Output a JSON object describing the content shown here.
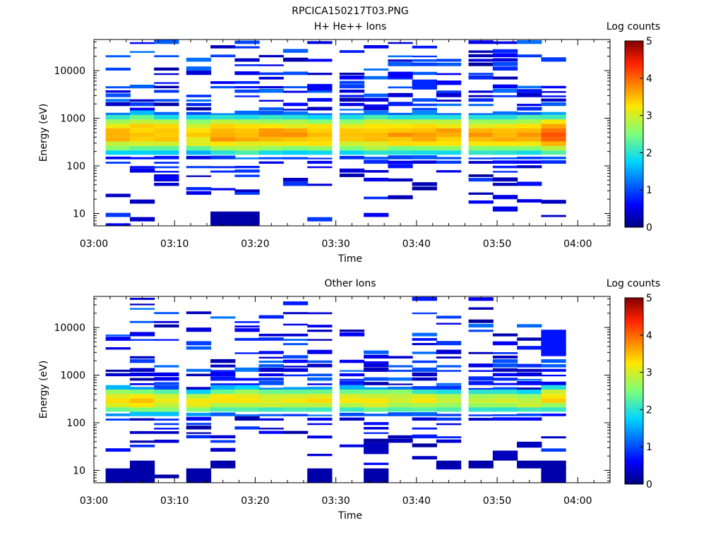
{
  "figure": {
    "title": "RPCICA150217T03.PNG"
  },
  "chart_data": [
    {
      "type": "heatmap",
      "title": "H+ He++ Ions",
      "xlabel": "Time",
      "ylabel": "Energy (eV)",
      "x_ticks": [
        "03:00",
        "03:10",
        "03:20",
        "03:30",
        "03:40",
        "03:50",
        "04:00"
      ],
      "x_range": [
        "03:00",
        "04:04"
      ],
      "y_scale": "log",
      "y_ticks": [
        10,
        100,
        1000,
        10000
      ],
      "y_range": [
        5.5,
        45000
      ],
      "colorbar": {
        "label": "Log counts",
        "ticks": [
          0,
          1,
          2,
          3,
          4,
          5
        ],
        "range": [
          0,
          5
        ]
      },
      "time_bins": [
        "03:03",
        "03:06",
        "03:09",
        "03:13",
        "03:16",
        "03:19",
        "03:22",
        "03:25",
        "03:28",
        "03:32",
        "03:35",
        "03:38",
        "03:41",
        "03:44",
        "03:48",
        "03:51",
        "03:54",
        "03:57"
      ],
      "core": [
        {
          "emin": 150,
          "emax": 1500,
          "peak": 3.6
        },
        {
          "emin": 150,
          "emax": 1600,
          "peak": 3.5
        },
        {
          "emin": 150,
          "emax": 1500,
          "peak": 3.5
        },
        {
          "emin": 150,
          "emax": 1400,
          "peak": 3.4
        },
        {
          "emin": 140,
          "emax": 1500,
          "peak": 3.7
        },
        {
          "emin": 130,
          "emax": 1500,
          "peak": 3.6
        },
        {
          "emin": 140,
          "emax": 1500,
          "peak": 3.6
        },
        {
          "emin": 140,
          "emax": 1500,
          "peak": 3.6
        },
        {
          "emin": 140,
          "emax": 1400,
          "peak": 3.6
        },
        {
          "emin": 140,
          "emax": 1500,
          "peak": 3.5
        },
        {
          "emin": 140,
          "emax": 1500,
          "peak": 3.6
        },
        {
          "emin": 140,
          "emax": 1500,
          "peak": 3.6
        },
        {
          "emin": 140,
          "emax": 1500,
          "peak": 3.6
        },
        {
          "emin": 140,
          "emax": 1500,
          "peak": 3.6
        },
        {
          "emin": 140,
          "emax": 1500,
          "peak": 3.6
        },
        {
          "emin": 140,
          "emax": 1500,
          "peak": 3.6
        },
        {
          "emin": 140,
          "emax": 1500,
          "peak": 3.7
        },
        {
          "emin": 140,
          "emax": 1500,
          "peak": 4.0
        }
      ],
      "sparse_bands": [
        {
          "bin": 0,
          "emin": 22,
          "emax": 26,
          "value": 0.3
        },
        {
          "bin": 4,
          "emin": 5.5,
          "emax": 11,
          "value": 0.2
        },
        {
          "bin": 5,
          "emin": 5.5,
          "emax": 11,
          "value": 0.2
        },
        {
          "bin": 5,
          "emin": 28,
          "emax": 32,
          "value": 0.3
        },
        {
          "bin": 2,
          "emin": 52,
          "emax": 62,
          "value": 0.6
        },
        {
          "bin": 15,
          "emin": 11,
          "emax": 14,
          "value": 0.5
        },
        {
          "bin": 16,
          "emin": 17,
          "emax": 20,
          "value": 0.5
        },
        {
          "bin": 8,
          "emin": 3800,
          "emax": 5200,
          "value": 0.6
        },
        {
          "bin": 12,
          "emin": 4000,
          "emax": 6500,
          "value": 0.8
        },
        {
          "bin": 11,
          "emin": 7000,
          "emax": 9500,
          "value": 0.6
        },
        {
          "bin": 13,
          "emin": 5000,
          "emax": 6200,
          "value": 0.6
        }
      ]
    },
    {
      "type": "heatmap",
      "title": "Other Ions",
      "xlabel": "Time",
      "ylabel": "Energy (eV)",
      "x_ticks": [
        "03:00",
        "03:10",
        "03:20",
        "03:30",
        "03:40",
        "03:50",
        "04:00"
      ],
      "x_range": [
        "03:00",
        "04:04"
      ],
      "y_scale": "log",
      "y_ticks": [
        10,
        100,
        1000,
        10000
      ],
      "y_range": [
        5.5,
        45000
      ],
      "colorbar": {
        "label": "Log counts",
        "ticks": [
          0,
          1,
          2,
          3,
          4,
          5
        ],
        "range": [
          0,
          5
        ]
      },
      "time_bins": [
        "03:03",
        "03:06",
        "03:09",
        "03:13",
        "03:16",
        "03:19",
        "03:22",
        "03:25",
        "03:28",
        "03:32",
        "03:35",
        "03:38",
        "03:41",
        "03:44",
        "03:48",
        "03:51",
        "03:54",
        "03:57"
      ],
      "core": [
        {
          "emin": 130,
          "emax": 650,
          "peak": 3.3
        },
        {
          "emin": 130,
          "emax": 650,
          "peak": 3.3
        },
        {
          "emin": 130,
          "emax": 600,
          "peak": 3.2
        },
        {
          "emin": 130,
          "emax": 550,
          "peak": 3.1
        },
        {
          "emin": 140,
          "emax": 650,
          "peak": 3.2
        },
        {
          "emin": 140,
          "emax": 700,
          "peak": 3.3
        },
        {
          "emin": 140,
          "emax": 650,
          "peak": 3.2
        },
        {
          "emin": 140,
          "emax": 650,
          "peak": 3.2
        },
        {
          "emin": 140,
          "emax": 650,
          "peak": 3.2
        },
        {
          "emin": 140,
          "emax": 650,
          "peak": 3.2
        },
        {
          "emin": 140,
          "emax": 650,
          "peak": 3.2
        },
        {
          "emin": 140,
          "emax": 650,
          "peak": 3.1
        },
        {
          "emin": 140,
          "emax": 600,
          "peak": 3.1
        },
        {
          "emin": 140,
          "emax": 600,
          "peak": 3.0
        },
        {
          "emin": 140,
          "emax": 600,
          "peak": 3.0
        },
        {
          "emin": 140,
          "emax": 600,
          "peak": 3.0
        },
        {
          "emin": 140,
          "emax": 550,
          "peak": 3.0
        },
        {
          "emin": 150,
          "emax": 700,
          "peak": 3.3
        }
      ],
      "sparse_bands": [
        {
          "bin": 0,
          "emin": 5.5,
          "emax": 11,
          "value": 0.2
        },
        {
          "bin": 1,
          "emin": 5.5,
          "emax": 16,
          "value": 0.2
        },
        {
          "bin": 3,
          "emin": 5.5,
          "emax": 11,
          "value": 0.2
        },
        {
          "bin": 4,
          "emin": 11,
          "emax": 16,
          "value": 0.2
        },
        {
          "bin": 8,
          "emin": 5.5,
          "emax": 11,
          "value": 0.2
        },
        {
          "bin": 10,
          "emin": 5.5,
          "emax": 11,
          "value": 0.2
        },
        {
          "bin": 10,
          "emin": 22,
          "emax": 38,
          "value": 0.3
        },
        {
          "bin": 12,
          "emin": 17,
          "emax": 20,
          "value": 0.3
        },
        {
          "bin": 13,
          "emin": 11,
          "emax": 16,
          "value": 0.2
        },
        {
          "bin": 14,
          "emin": 11,
          "emax": 16,
          "value": 0.2
        },
        {
          "bin": 15,
          "emin": 17,
          "emax": 26,
          "value": 0.3
        },
        {
          "bin": 16,
          "emin": 11,
          "emax": 16,
          "value": 0.2
        },
        {
          "bin": 17,
          "emin": 5.5,
          "emax": 16,
          "value": 0.2
        },
        {
          "bin": 16,
          "emin": 30,
          "emax": 40,
          "value": 0.3
        },
        {
          "bin": 5,
          "emin": 10000,
          "emax": 11000,
          "value": 0.5
        },
        {
          "bin": 7,
          "emin": 11000,
          "emax": 12000,
          "value": 0.5
        },
        {
          "bin": 13,
          "emin": 11500,
          "emax": 12500,
          "value": 0.5
        },
        {
          "bin": 1,
          "emin": 38000,
          "emax": 42000,
          "value": 0.4
        },
        {
          "bin": 17,
          "emin": 2500,
          "emax": 9000,
          "value": 0.7
        }
      ]
    }
  ]
}
